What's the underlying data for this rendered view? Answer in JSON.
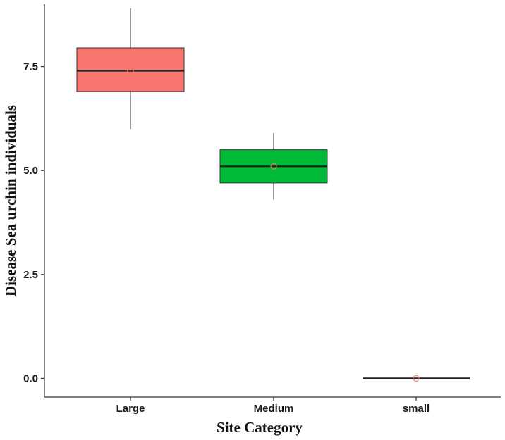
{
  "chart_data": {
    "type": "boxplot",
    "title": "",
    "xlabel": "Site Category",
    "ylabel": "Disease Sea urchin individuals",
    "ylim": [
      -0.45,
      9.0
    ],
    "yticks": [
      0.0,
      2.5,
      5.0,
      7.5
    ],
    "ytick_labels": [
      "0.0",
      "2.5",
      "5.0",
      "7.5"
    ],
    "grid": false,
    "legend": "none",
    "categories": [
      "Large",
      "Medium",
      "small"
    ],
    "boxes": [
      {
        "category": "Large",
        "whisker_low": 6.0,
        "q1": 6.9,
        "median": 7.4,
        "q3": 7.95,
        "whisker_high": 8.9,
        "mean": 7.4,
        "color": "#F8766D"
      },
      {
        "category": "Medium",
        "whisker_low": 4.3,
        "q1": 4.7,
        "median": 5.1,
        "q3": 5.5,
        "whisker_high": 5.9,
        "mean": 5.1,
        "color": "#00BA38"
      },
      {
        "category": "small",
        "whisker_low": 0.0,
        "q1": 0.0,
        "median": 0.0,
        "q3": 0.0,
        "whisker_high": 0.0,
        "mean": 0.0,
        "color": "#619CFF"
      }
    ],
    "mean_marker_color": "#F8766D"
  }
}
